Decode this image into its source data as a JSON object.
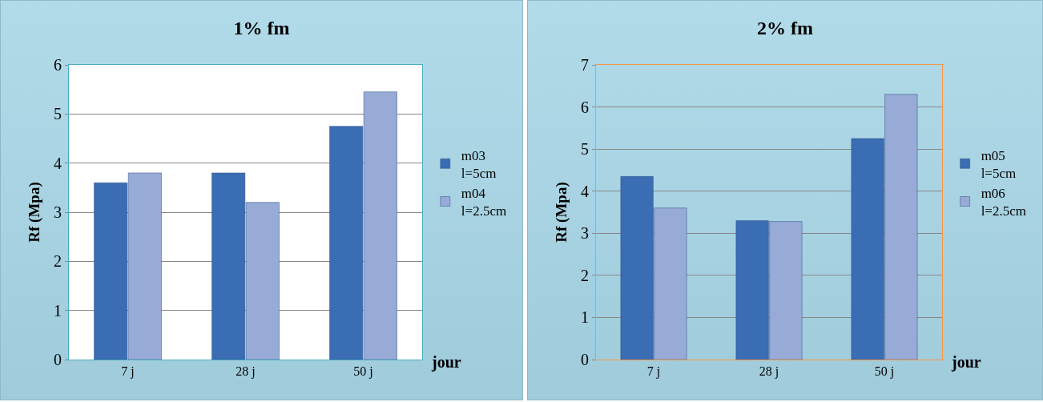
{
  "chart_data": [
    {
      "type": "bar",
      "title": "1% fm",
      "xlabel": "jour",
      "ylabel": "Rf (Mpa)",
      "categories": [
        "7 j",
        "28 j",
        "50 j"
      ],
      "series": [
        {
          "name": "m03\nl=5cm",
          "color": "#3a6db3",
          "values": [
            3.6,
            3.8,
            4.75
          ]
        },
        {
          "name": "m04\nl=2.5cm",
          "color": "#98abd6",
          "values": [
            3.8,
            3.2,
            5.45
          ]
        }
      ],
      "ylim": [
        0,
        6
      ],
      "yticks": [
        0,
        1,
        2,
        3,
        4,
        5,
        6
      ],
      "grid": "y",
      "legend": "right"
    },
    {
      "type": "bar",
      "title": "2% fm",
      "xlabel": "jour",
      "ylabel": "Rf (Mpa)",
      "categories": [
        "7 j",
        "28 j",
        "50 j"
      ],
      "series": [
        {
          "name": "m05\nl=5cm",
          "color": "#3a6db3",
          "values": [
            4.35,
            3.3,
            5.25
          ]
        },
        {
          "name": "m06\nl=2.5cm",
          "color": "#98abd6",
          "values": [
            3.6,
            3.28,
            6.3
          ]
        }
      ],
      "ylim": [
        0,
        7
      ],
      "yticks": [
        0,
        1,
        2,
        3,
        4,
        5,
        6,
        7
      ],
      "grid": "y",
      "legend": "right"
    }
  ]
}
